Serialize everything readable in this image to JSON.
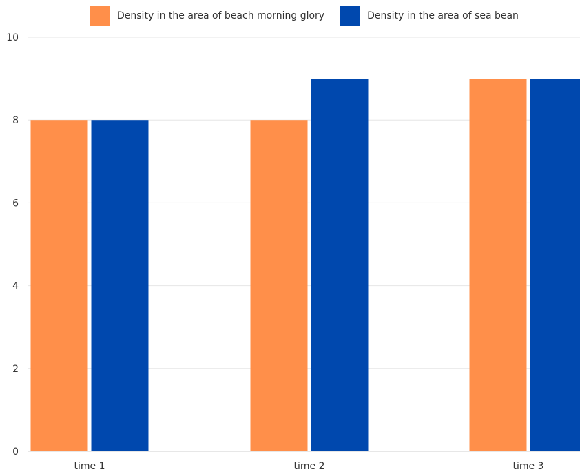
{
  "chart_data": {
    "type": "bar",
    "title": "",
    "xlabel": "",
    "ylabel": "",
    "categories": [
      "time 1",
      "time 2",
      "time 3"
    ],
    "series": [
      {
        "name": "Density in the area of beach morning glory",
        "values": [
          8,
          8,
          9
        ],
        "color": "#FF8F4A"
      },
      {
        "name": "Density in the area of sea bean",
        "values": [
          8,
          9,
          9
        ],
        "color": "#0048AE"
      }
    ],
    "ylim": [
      0,
      10
    ],
    "yticks": [
      0,
      2,
      4,
      6,
      8,
      10
    ],
    "grid": true,
    "legend_position": "top"
  }
}
